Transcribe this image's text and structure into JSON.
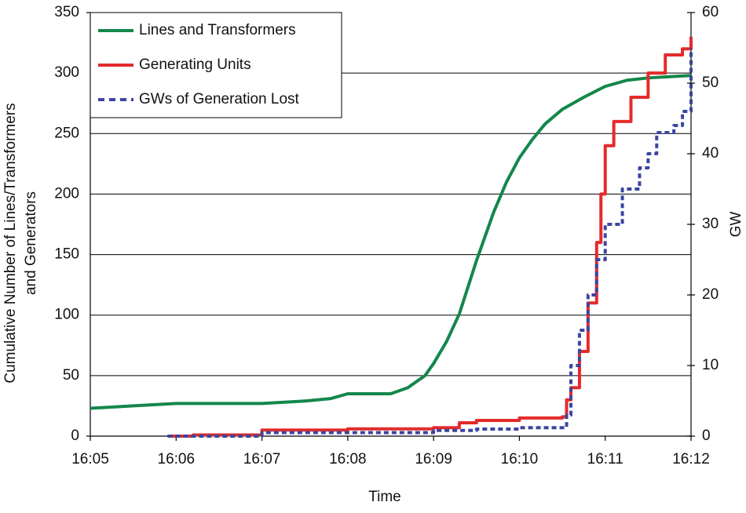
{
  "chart_data": {
    "type": "line",
    "xlabel": "Time",
    "ylabel": [
      "Cumulative Number of Lines/Transformers",
      "and Generators"
    ],
    "y2label": "GW",
    "xlim": [
      5,
      12
    ],
    "xticks": [
      {
        "value": 5,
        "label": "16:05"
      },
      {
        "value": 6,
        "label": "16:06"
      },
      {
        "value": 7,
        "label": "16:07"
      },
      {
        "value": 8,
        "label": "16:08"
      },
      {
        "value": 9,
        "label": "16:09"
      },
      {
        "value": 10,
        "label": "16:10"
      },
      {
        "value": 11,
        "label": "16:11"
      },
      {
        "value": 12,
        "label": "16:12"
      }
    ],
    "ylim": [
      0,
      350
    ],
    "yticks": [
      0,
      50,
      100,
      150,
      200,
      250,
      300,
      350
    ],
    "y2lim": [
      0,
      60
    ],
    "y2ticks": [
      0,
      10,
      20,
      30,
      40,
      50,
      60
    ],
    "grid": true,
    "legend": "upper left",
    "series": [
      {
        "name": "Lines and Transformers",
        "color": "#13874b",
        "dash": false,
        "step": false,
        "x": [
          5,
          5.5,
          6,
          6.5,
          7,
          7.5,
          7.8,
          8,
          8.2,
          8.5,
          8.7,
          8.9,
          9,
          9.15,
          9.3,
          9.5,
          9.7,
          9.85,
          10,
          10.15,
          10.3,
          10.5,
          10.75,
          11,
          11.25,
          11.5,
          11.75,
          12
        ],
        "values": [
          23,
          25,
          27,
          27,
          27,
          29,
          31,
          35,
          35,
          35,
          40,
          50,
          60,
          78,
          101,
          145,
          185,
          210,
          230,
          245,
          258,
          270,
          280,
          289,
          294,
          296,
          297,
          298
        ]
      },
      {
        "name": "Generating Units",
        "color": "#e32b2b",
        "dash": false,
        "step": true,
        "x": [
          5.9,
          6.2,
          7,
          8,
          9,
          9.3,
          9.5,
          10,
          10.5,
          10.55,
          10.6,
          10.7,
          10.8,
          10.9,
          10.95,
          11,
          11.1,
          11.3,
          11.5,
          11.7,
          11.9,
          12
        ],
        "values": [
          0,
          1,
          5,
          6,
          7,
          11,
          13,
          15,
          16,
          30,
          40,
          70,
          110,
          160,
          200,
          240,
          260,
          280,
          300,
          315,
          320,
          330
        ]
      },
      {
        "name": "GWs of Generation Lost",
        "color": "#3c45a0",
        "dash": true,
        "step": true,
        "axis": "y2",
        "x": [
          5.9,
          7,
          9,
          9.5,
          10,
          10.5,
          10.55,
          10.6,
          10.7,
          10.8,
          10.9,
          11,
          11.2,
          11.4,
          11.5,
          11.6,
          11.8,
          11.9,
          12
        ],
        "values": [
          0,
          0.5,
          0.8,
          1,
          1.2,
          1.2,
          3,
          10,
          15,
          20,
          25,
          30,
          35,
          38,
          40,
          43,
          44,
          46,
          55
        ]
      }
    ]
  }
}
